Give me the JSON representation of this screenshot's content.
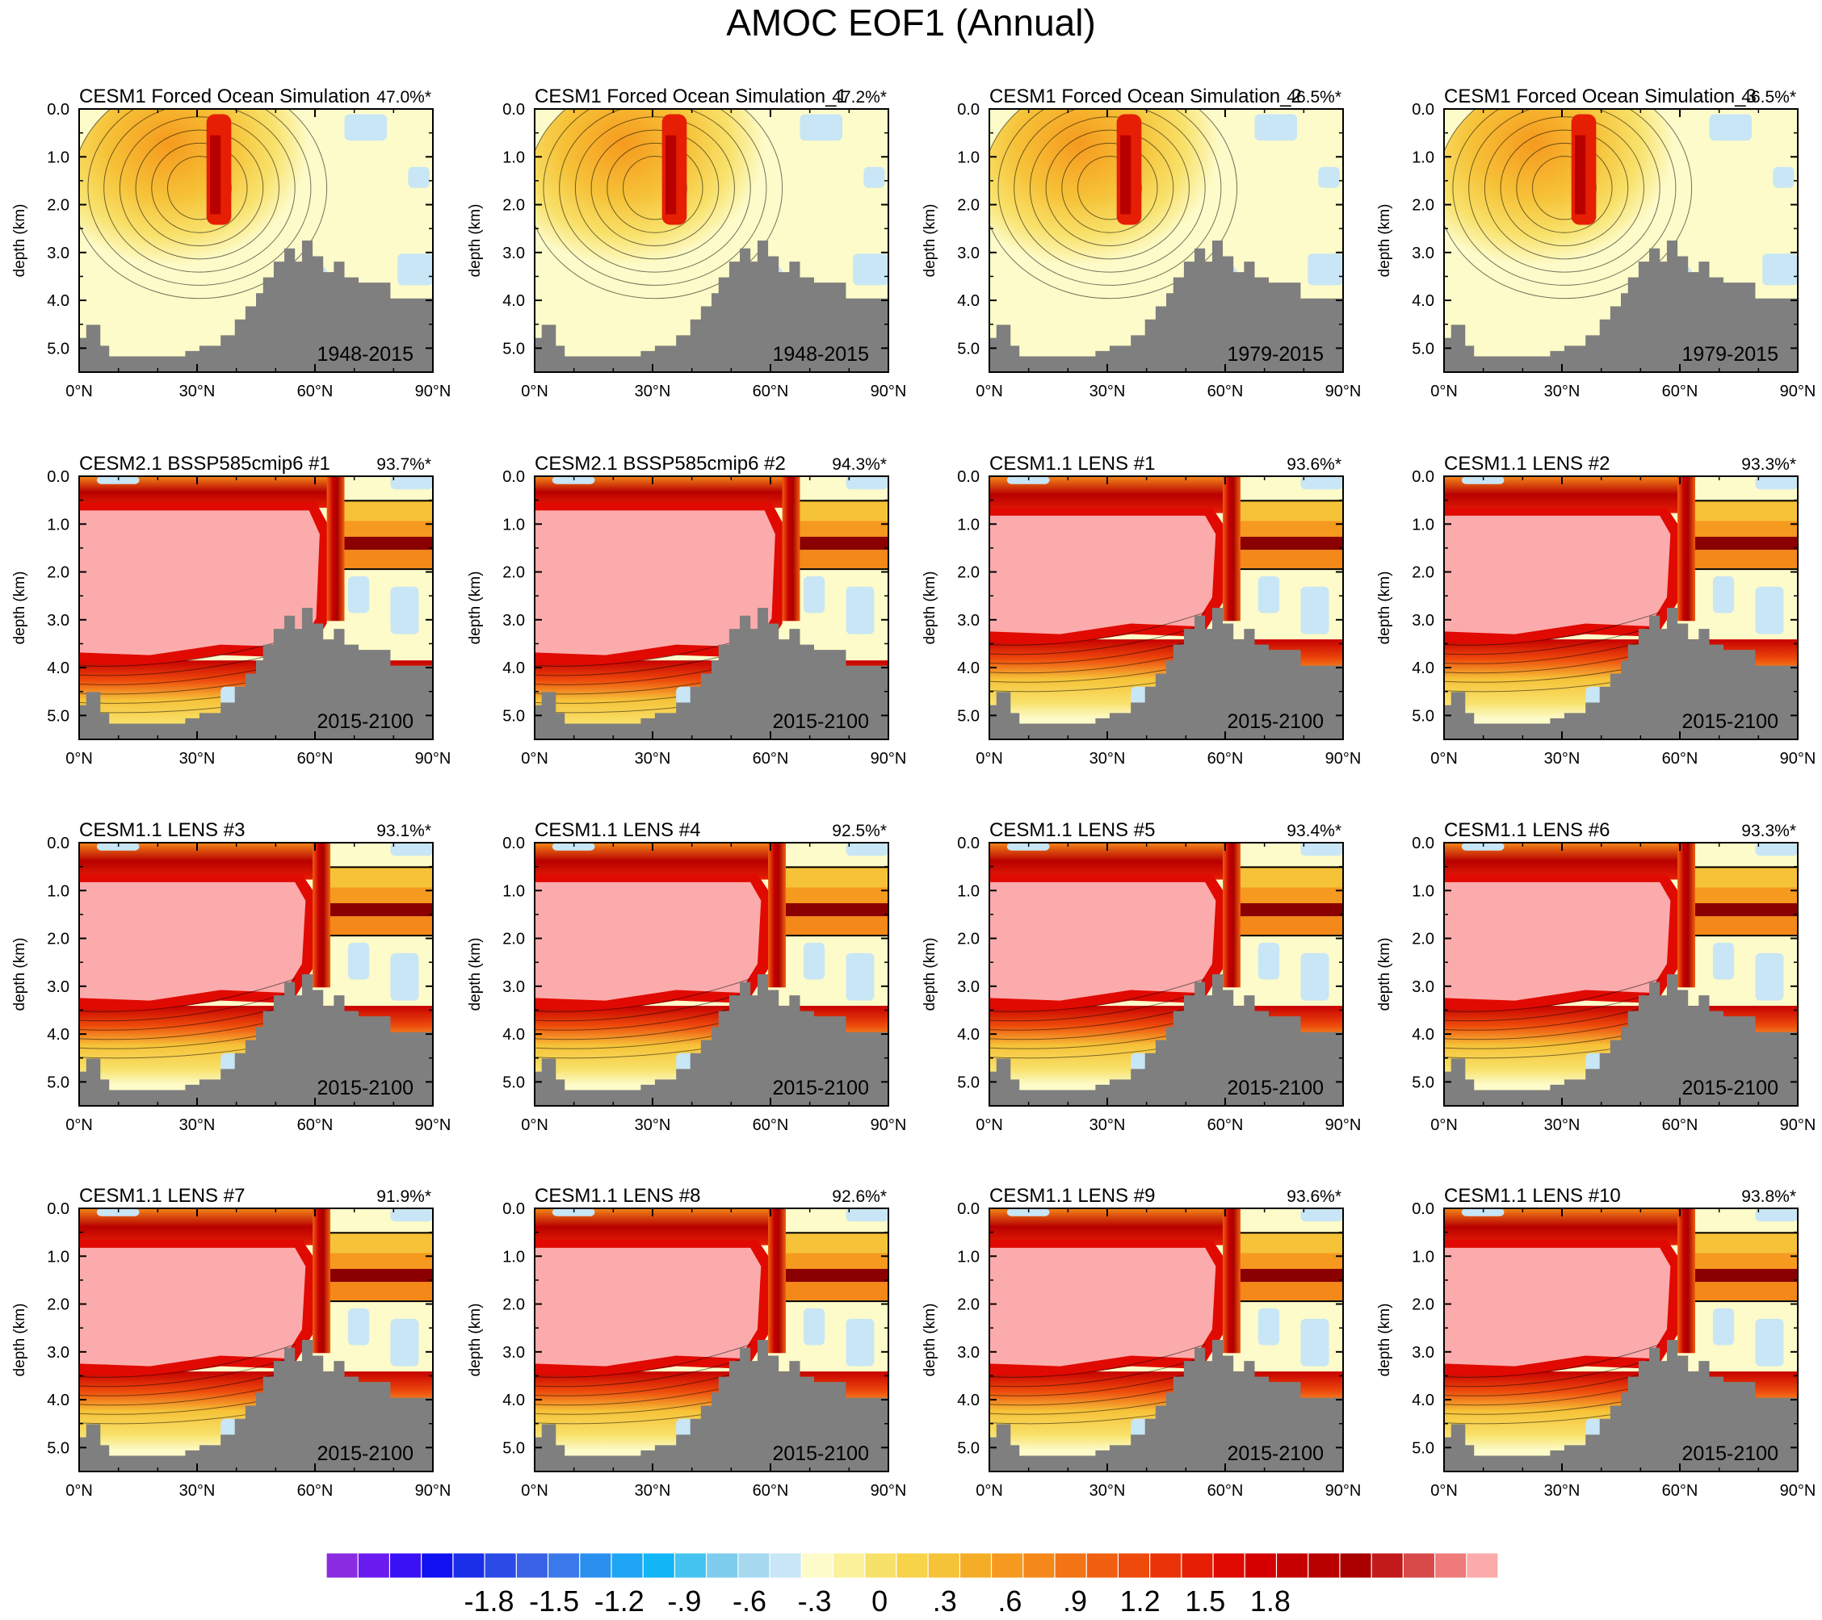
{
  "title": "AMOC EOF1 (Annual)",
  "chart_data": {
    "type": "contour-panels",
    "ylabel": "depth (km)",
    "x_ticks": [
      "0°N",
      "30°N",
      "60°N",
      "90°N"
    ],
    "y_ticks": [
      "0.0",
      "1.0",
      "2.0",
      "3.0",
      "4.0",
      "5.0"
    ],
    "xlim": [
      0,
      90
    ],
    "ylim_km": [
      5.5,
      0
    ],
    "panels": [
      {
        "name": "CESM1 Forced Ocean Simulation",
        "pct": "47.0%*",
        "period": "1948-2015",
        "style": "forced"
      },
      {
        "name": "CESM1 Forced Ocean Simulation_1",
        "pct": "47.2%*",
        "period": "1948-2015",
        "style": "forced"
      },
      {
        "name": "CESM1 Forced Ocean Simulation_2",
        "pct": "46.5%*",
        "period": "1979-2015",
        "style": "forced"
      },
      {
        "name": "CESM1 Forced Ocean Simulation_3",
        "pct": "46.5%*",
        "period": "1979-2015",
        "style": "forced"
      },
      {
        "name": "CESM2.1 BSSP585cmip6 #1",
        "pct": "93.7%*",
        "period": "2015-2100",
        "style": "cesm2"
      },
      {
        "name": "CESM2.1 BSSP585cmip6 #2",
        "pct": "94.3%*",
        "period": "2015-2100",
        "style": "cesm2"
      },
      {
        "name": "CESM1.1 LENS #1",
        "pct": "93.6%*",
        "period": "2015-2100",
        "style": "lens"
      },
      {
        "name": "CESM1.1 LENS #2",
        "pct": "93.3%*",
        "period": "2015-2100",
        "style": "lens"
      },
      {
        "name": "CESM1.1 LENS #3",
        "pct": "93.1%*",
        "period": "2015-2100",
        "style": "lens"
      },
      {
        "name": "CESM1.1 LENS #4",
        "pct": "92.5%*",
        "period": "2015-2100",
        "style": "lens"
      },
      {
        "name": "CESM1.1 LENS #5",
        "pct": "93.4%*",
        "period": "2015-2100",
        "style": "lens"
      },
      {
        "name": "CESM1.1 LENS #6",
        "pct": "93.3%*",
        "period": "2015-2100",
        "style": "lens"
      },
      {
        "name": "CESM1.1 LENS #7",
        "pct": "91.9%*",
        "period": "2015-2100",
        "style": "lens"
      },
      {
        "name": "CESM1.1 LENS #8",
        "pct": "92.6%*",
        "period": "2015-2100",
        "style": "lens"
      },
      {
        "name": "CESM1.1 LENS #9",
        "pct": "93.6%*",
        "period": "2015-2100",
        "style": "lens"
      },
      {
        "name": "CESM1.1 LENS #10",
        "pct": "93.8%*",
        "period": "2015-2100",
        "style": "lens"
      }
    ],
    "colorbar": {
      "levels": [
        -1.95,
        -1.8,
        -1.65,
        -1.5,
        -1.35,
        -1.2,
        -1.05,
        -0.9,
        -0.75,
        -0.6,
        -0.45,
        -0.3,
        -0.15,
        0,
        0.15,
        0.3,
        0.45,
        0.6,
        0.75,
        0.9,
        1.05,
        1.2,
        1.35,
        1.5,
        1.65,
        1.8,
        1.95
      ],
      "labels": [
        "-1.8",
        "-1.5",
        "-1.2",
        "-.9",
        "-.6",
        "-.3",
        "0",
        ".3",
        ".6",
        ".9",
        "1.2",
        "1.5",
        "1.8"
      ],
      "colors": [
        "#8a2be2",
        "#6a1cf0",
        "#3a10f5",
        "#1010f0",
        "#1a2fe8",
        "#2a4be6",
        "#3a62e6",
        "#3a79ea",
        "#2b8ff0",
        "#1ea5f5",
        "#12b6f7",
        "#45c4f2",
        "#7ecdee",
        "#a6d8f0",
        "#c8e6f5",
        "#fdfbc9",
        "#fbf19a",
        "#f8e16a",
        "#f7d34a",
        "#f6c238",
        "#f5ad28",
        "#f59a1e",
        "#f48818",
        "#f27414",
        "#f06010",
        "#ee4a0c",
        "#ea3408",
        "#e61e04",
        "#e00a02",
        "#d40000",
        "#c60000",
        "#b80000",
        "#aa0000",
        "#c21a1a",
        "#d84a4a",
        "#ee7a7a",
        "#fbabab"
      ]
    }
  }
}
